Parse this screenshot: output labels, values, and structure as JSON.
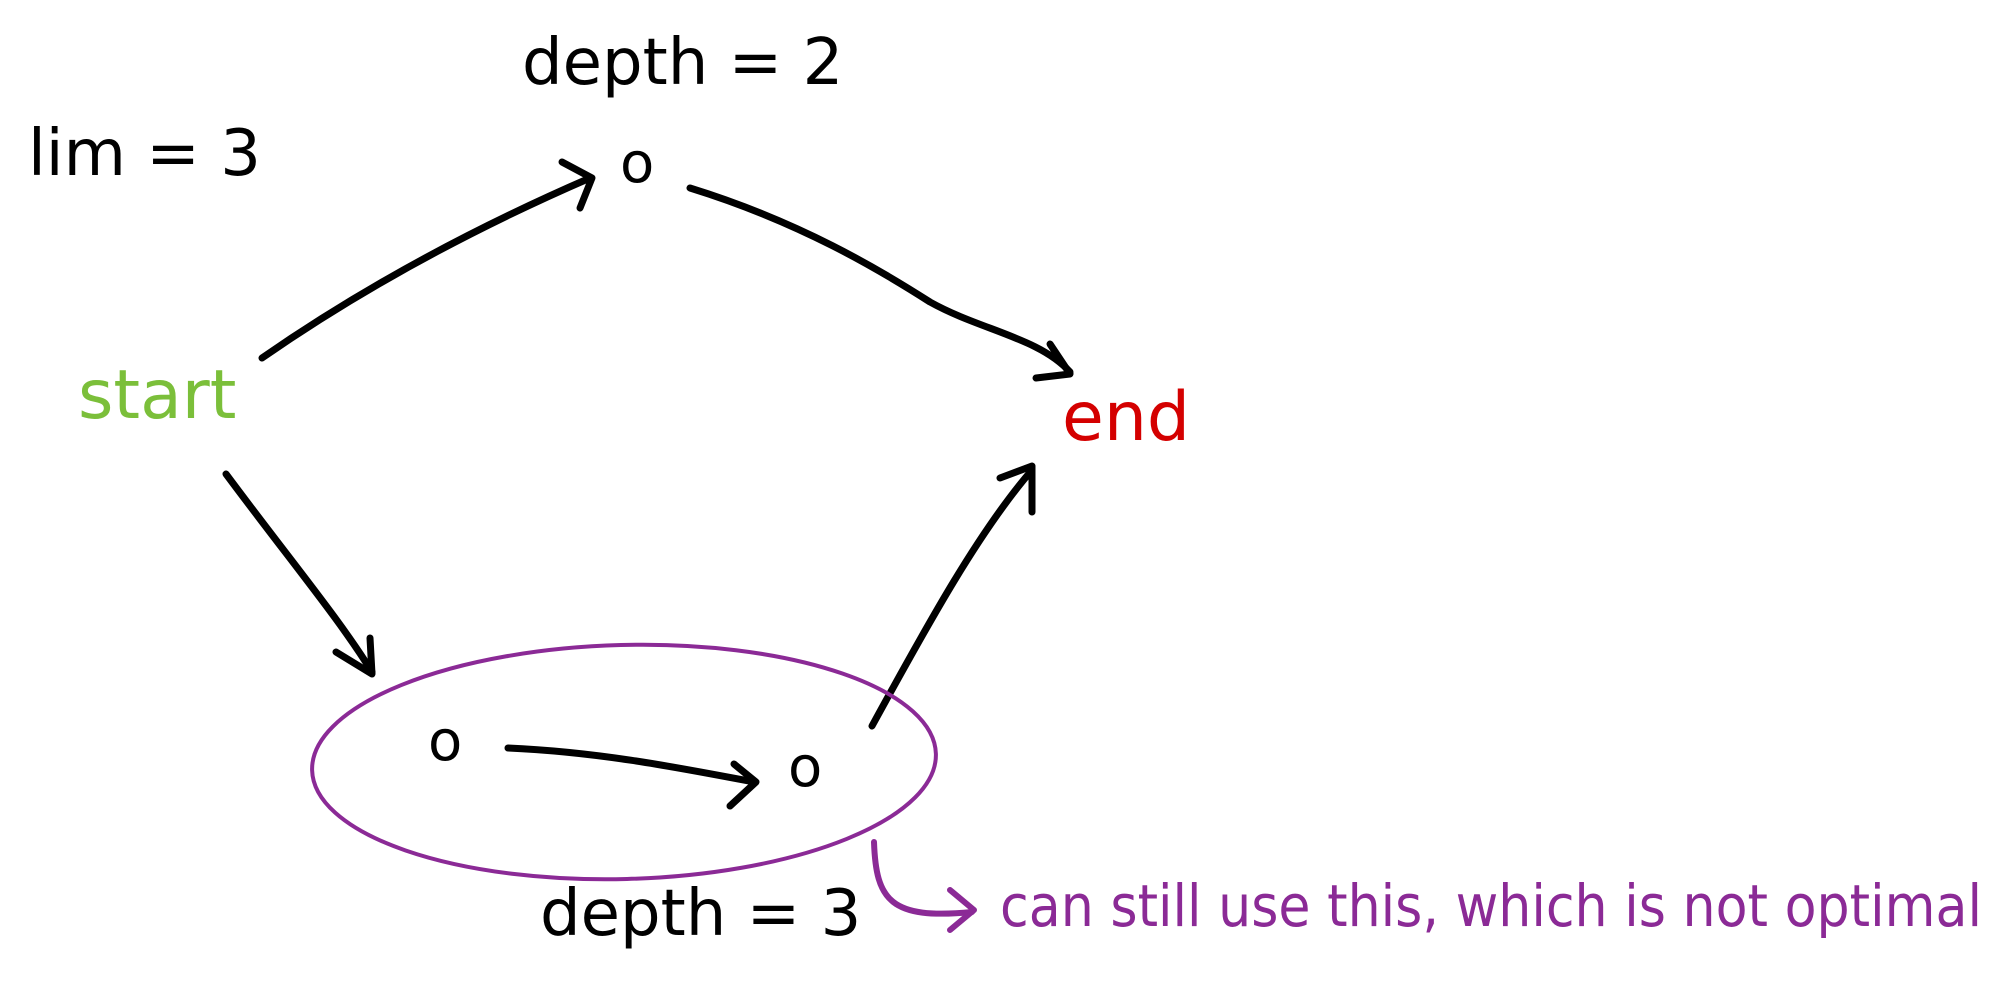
{
  "colors": {
    "ink": "#000000",
    "start": "#7bbf3a",
    "end": "#d40000",
    "highlight": "#8b2a96"
  },
  "diagram": {
    "limit_label": "lim = 3",
    "start_label": "start",
    "end_label": "end",
    "node_symbol": "o",
    "top_depth_label": "depth = 2",
    "bottom_depth_label": "depth = 3",
    "annotation": "can still use this, which is not optimal"
  }
}
